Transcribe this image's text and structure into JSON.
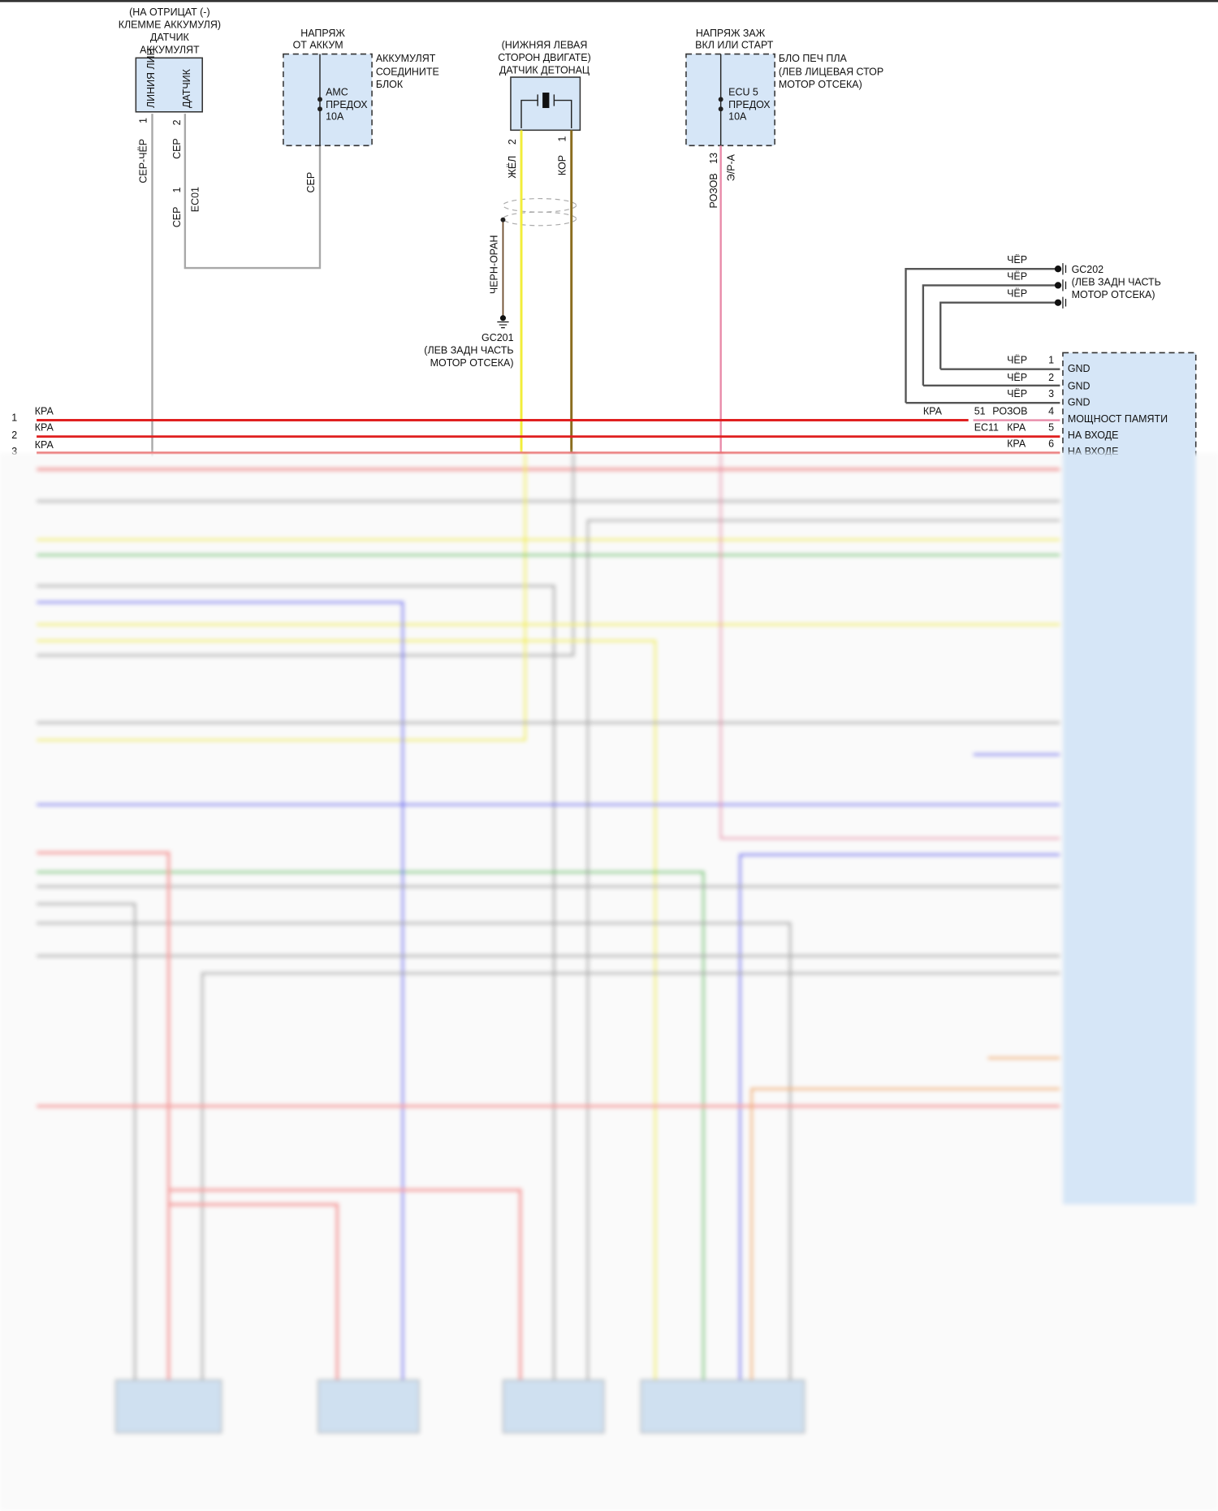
{
  "colors": {
    "red": "#e02020",
    "gray": "#a8a8a8",
    "yellow": "#f2ee3a",
    "brown": "#8a6d1e",
    "pink": "#e88aa8",
    "black": "#333333",
    "blue": "#6a6af0",
    "green": "#6cc86c",
    "orange": "#f2b060",
    "box": "#d6e6f7"
  },
  "battery_sensor": {
    "caption": [
      "(НА ОТРИЦАТ (-)",
      "КЛЕММЕ АККУМУЛЯ)",
      "ДАТЧИК",
      "АККУМУЛЯТ"
    ],
    "pin1_label": "ЛИНИЯ ЛИН",
    "pin2_label": "ДАТЧИК",
    "pin1": "1",
    "pin2": "2",
    "wire1": "СЕР-ЧЁР",
    "wire2": "СЕР",
    "connector": "EC01",
    "connector_pin": "1",
    "wire2b": "СЕР"
  },
  "amc_fuse": {
    "supply": [
      "НАПРЯЖ",
      "ОТ АККУМ"
    ],
    "block": [
      "АККУМУЛЯТ",
      "СОЕДИНИТЕ",
      "БЛОК"
    ],
    "fuse": [
      "АМС",
      "ПРЕДОХ",
      "10A"
    ],
    "wire": "СЕР"
  },
  "knock_sensor": {
    "caption": [
      "(НИЖНЯЯ ЛЕВАЯ",
      "СТОРОН ДВИГАТЕ)",
      "ДАТЧИК ДЕТОНАЦ"
    ],
    "pin_a": "2",
    "pin_b": "1",
    "wire_a": "ЖЁЛ",
    "wire_b": "КОР",
    "shield_wire": "ЧЕРН-ОРАН",
    "ground": [
      "GC201",
      "(ЛЕВ ЗАДН ЧАСТЬ",
      "МОТОР ОТСЕКА)"
    ]
  },
  "ecu_fuse": {
    "supply": [
      "НАПРЯЖ ЗАЖ",
      "ВКЛ ИЛИ СТАРТ"
    ],
    "block": [
      "БЛО ПЕЧ ПЛА",
      "(ЛЕВ ЛИЦЕВАЯ СТОР",
      "МОТОР ОТСЕКА)"
    ],
    "fuse": [
      "ECU 5",
      "ПРЕДОХ",
      "10A"
    ],
    "pin": "13",
    "wire": "РОЗОВ",
    "wire_alt": "Э/Р-А"
  },
  "ground_gc202": {
    "wires": [
      "ЧЁР",
      "ЧЁР",
      "ЧЁР"
    ],
    "label": [
      "GC202",
      "(ЛЕВ ЗАДН ЧАСТЬ",
      "МОТОР ОТСЕКА)"
    ]
  },
  "ecu_pins": [
    {
      "pin": "1",
      "wire": "ЧЁР",
      "name": "GND"
    },
    {
      "pin": "2",
      "wire": "ЧЁР",
      "name": "GND"
    },
    {
      "pin": "3",
      "wire": "ЧЁР",
      "name": "GND"
    },
    {
      "pin": "4",
      "wire": "РОЗОВ",
      "name": "МОЩНОСТ ПАМЯТИ",
      "connector_pin": "51",
      "left_wire": "КРА"
    },
    {
      "pin": "5",
      "wire": "КРА",
      "name": "НА ВХОДЕ",
      "connector": "EC11"
    },
    {
      "pin": "6",
      "wire": "КРА",
      "name": "НА ВХОДЕ"
    }
  ],
  "left_bus": [
    {
      "num": "1",
      "wire": "КРА"
    },
    {
      "num": "2",
      "wire": "КРА"
    },
    {
      "num": "3",
      "wire": "КРА"
    }
  ]
}
